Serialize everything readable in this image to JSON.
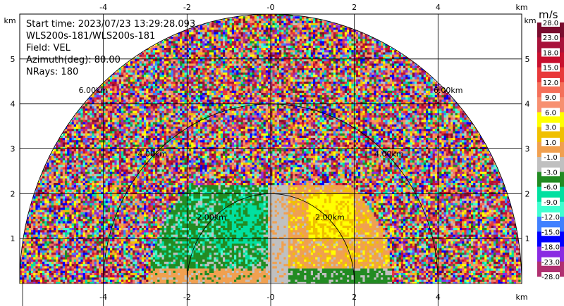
{
  "info": {
    "start_time": "Start time: 2023/07/23 13:29:28.093",
    "station": "WLS200s-181/WLS200s-181",
    "field": "Field: VEL",
    "azimuth": "Azimuth(deg): 80.00",
    "nrays": "NRays: 180"
  },
  "chart_data": {
    "type": "heatmap",
    "title": "",
    "xlabel": "km",
    "ylabel": "km",
    "xlim": [
      -6,
      6
    ],
    "ylim": [
      0,
      6
    ],
    "x_ticks": [
      "-4",
      "-2",
      "-0",
      "2",
      "4"
    ],
    "x_tick_values": [
      -4,
      -2,
      0,
      2,
      4
    ],
    "y_ticks": [
      "1",
      "2",
      "3",
      "4",
      "5"
    ],
    "y_tick_values": [
      1,
      2,
      3,
      4,
      5
    ],
    "axis_unit": "km",
    "range_rings": [
      {
        "radius": 2,
        "label": "2.00km"
      },
      {
        "radius": 4,
        "label": "4.00km"
      },
      {
        "radius": 6,
        "label": "6.00km"
      }
    ],
    "grid": true,
    "colorbar": {
      "unit": "m/s",
      "ticks": [
        "28.0",
        "23.0",
        "18.0",
        "15.0",
        "12.0",
        "9.0",
        "6.0",
        "3.0",
        "1.0",
        "-1.0",
        "-3.0",
        "-6.0",
        "-9.0",
        "-12.0",
        "-15.0",
        "-18.0",
        "-23.0",
        "-28.0"
      ],
      "colors": [
        "#7a0c2e",
        "#a8123a",
        "#c8102e",
        "#e8393a",
        "#f4705a",
        "#f79070",
        "#ffff00",
        "#f0c000",
        "#f0a050",
        "#c0c0c0",
        "#228b22",
        "#00e0a0",
        "#40ffd0",
        "#4080ff",
        "#0000ff",
        "#8a2be2",
        "#b03070"
      ]
    }
  }
}
